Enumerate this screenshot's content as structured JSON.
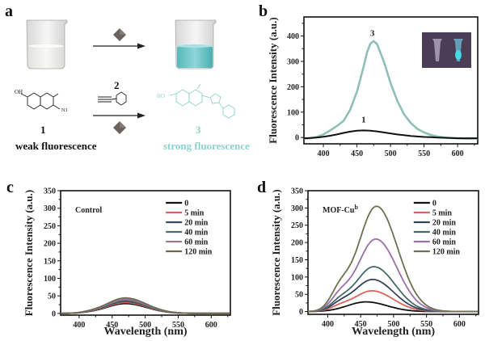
{
  "figure": {
    "panel_letters": [
      "a",
      "b",
      "c",
      "d"
    ]
  },
  "panel_a": {
    "compound1_label": "1",
    "compound2_label": "2",
    "compound3_label": "3",
    "weak_text": "weak fluorescence",
    "strong_text": "strong fluorescence",
    "oh_label_1": "OH",
    "n3_label": "N3",
    "ho_label_3": "HO",
    "colors": {
      "strong": "#7ecfcf",
      "weak_text": "#111111",
      "catalyst": "#6b625d",
      "beaker_liquid_after": "#6cc7c9"
    }
  },
  "chart_data": [
    {
      "id": "b",
      "type": "line",
      "title": "",
      "xlabel": "",
      "ylabel": "Fluorescence Intensity (a.u.)",
      "xlim": [
        371,
        630
      ],
      "ylim": [
        -25,
        475
      ],
      "xticks": [
        400,
        450,
        500,
        550,
        600
      ],
      "yticks": [
        0,
        100,
        200,
        300,
        400
      ],
      "grid": false,
      "annotations": [
        {
          "text": "3",
          "x": 473,
          "y": 400
        },
        {
          "text": "1",
          "x": 460,
          "y": 60
        }
      ],
      "inset": "photo of two vials under UV: left faint, right bright cyan",
      "series": [
        {
          "name": "3",
          "color": "#8fbfb8",
          "x": [
            371,
            380,
            390,
            400,
            410,
            420,
            430,
            440,
            450,
            460,
            465,
            470,
            475,
            480,
            490,
            500,
            510,
            520,
            530,
            540,
            550,
            560,
            570,
            580,
            590,
            600,
            610,
            620,
            630
          ],
          "y": [
            -4,
            -3,
            2,
            12,
            28,
            45,
            65,
            110,
            180,
            280,
            335,
            370,
            380,
            368,
            300,
            215,
            145,
            92,
            58,
            34,
            20,
            10,
            4,
            0,
            -2,
            -3,
            -4,
            -4,
            -4
          ]
        },
        {
          "name": "1",
          "color": "#111111",
          "x": [
            371,
            380,
            390,
            400,
            410,
            420,
            430,
            440,
            450,
            460,
            470,
            480,
            490,
            500,
            510,
            520,
            530,
            540,
            550,
            560,
            570,
            580,
            590,
            600,
            610,
            620,
            630
          ],
          "y": [
            -3,
            -2,
            0,
            3,
            7,
            12,
            18,
            23,
            27,
            28,
            27,
            24,
            20,
            16,
            12,
            9,
            6,
            4,
            2,
            1,
            0,
            -1,
            -2,
            -3,
            -3,
            -3,
            -3
          ]
        }
      ]
    },
    {
      "id": "c",
      "type": "line",
      "title": "",
      "xlabel": "Wavelength (nm)",
      "ylabel": "Fluorescence Intensity (a.u.)",
      "xlim": [
        372,
        629
      ],
      "ylim": [
        -5,
        350
      ],
      "xticks": [
        400,
        450,
        500,
        550,
        600
      ],
      "yticks": [
        0,
        50,
        100,
        150,
        200,
        250,
        300,
        350
      ],
      "grid": false,
      "annotations": [
        {
          "text": "Control"
        }
      ],
      "legend": {
        "placement": "top-right",
        "entries": [
          "0",
          "5 min",
          "20 min",
          "40 min",
          "60 min",
          "120 min"
        ]
      },
      "x": [
        372,
        380,
        390,
        400,
        410,
        420,
        430,
        440,
        450,
        460,
        470,
        480,
        490,
        500,
        510,
        520,
        530,
        540,
        550,
        560,
        570,
        580,
        590,
        600,
        610,
        620,
        629
      ],
      "series": [
        {
          "name": "0",
          "color": "#111111",
          "peak": 28
        },
        {
          "name": "5 min",
          "color": "#d9645a",
          "peak": 31
        },
        {
          "name": "20 min",
          "color": "#3b4a5c",
          "peak": 34
        },
        {
          "name": "40 min",
          "color": "#4f6b6b",
          "peak": 37
        },
        {
          "name": "60 min",
          "color": "#9a7a92",
          "peak": 40
        },
        {
          "name": "120 min",
          "color": "#6d6a4f",
          "peak": 44
        }
      ],
      "peak_wavelength": 470
    },
    {
      "id": "d",
      "type": "line",
      "title": "",
      "xlabel": "Wavelength (nm)",
      "ylabel": "Fluorescence Intensity (a.u.)",
      "xlim": [
        370,
        629
      ],
      "ylim": [
        -8,
        350
      ],
      "xticks": [
        400,
        450,
        500,
        550,
        600
      ],
      "yticks": [
        0,
        50,
        100,
        150,
        200,
        250,
        300,
        350
      ],
      "grid": false,
      "annotations": [
        {
          "text": "MOF-Cu",
          "sup": "b"
        }
      ],
      "legend": {
        "placement": "top-right",
        "entries": [
          "0",
          "5 min",
          "20 min",
          "40 min",
          "60 min",
          "120 min"
        ]
      },
      "series": [
        {
          "name": "0",
          "color": "#111111",
          "peak": 28,
          "peak_x": 458
        },
        {
          "name": "5 min",
          "color": "#d9645a",
          "peak": 60,
          "peak_x": 467
        },
        {
          "name": "20 min",
          "color": "#34435c",
          "peak": 93,
          "peak_x": 468
        },
        {
          "name": "40 min",
          "color": "#446a6a",
          "peak": 130,
          "peak_x": 470
        },
        {
          "name": "60 min",
          "color": "#9a6fa8",
          "peak": 210,
          "peak_x": 473
        },
        {
          "name": "120 min",
          "color": "#6f7050",
          "peak": 305,
          "peak_x": 474
        }
      ]
    }
  ]
}
